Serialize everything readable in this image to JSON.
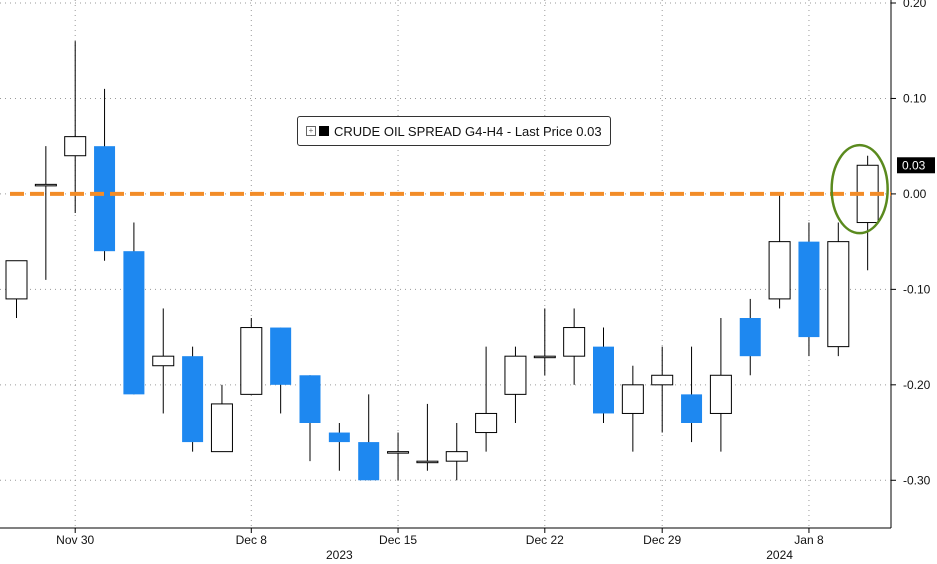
{
  "chart_data": {
    "type": "candlestick",
    "legend": {
      "label": "CRUDE OIL SPREAD G4-H4 - Last Price 0.03",
      "placement": "top-center"
    },
    "last_price_tag": "0.03",
    "last_value": 0.03,
    "reference_line": {
      "value": 0.0,
      "color": "#f28c28",
      "style": "dashed"
    },
    "highlight": {
      "label": "latest candle circled",
      "color": "#5a8a1e"
    },
    "colors": {
      "up": "#ffffff",
      "down": "#1e88f0",
      "outline": "#000000"
    },
    "ylim": [
      -0.35,
      0.2
    ],
    "grid": true,
    "yticks": [
      {
        "value": 0.2,
        "label": "0.20"
      },
      {
        "value": 0.1,
        "label": "0.10"
      },
      {
        "value": 0.0,
        "label": "0.00"
      },
      {
        "value": -0.1,
        "label": "-0.10"
      },
      {
        "value": -0.2,
        "label": "-0.20"
      },
      {
        "value": -0.3,
        "label": "-0.30"
      }
    ],
    "xticks": [
      {
        "index": 2,
        "label": "Nov 30"
      },
      {
        "index": 8,
        "label": "Dec 8"
      },
      {
        "index": 13,
        "label": "Dec 15"
      },
      {
        "index": 18,
        "label": "Dec 22"
      },
      {
        "index": 22,
        "label": "Dec 29"
      },
      {
        "index": 27,
        "label": "Jan 8"
      }
    ],
    "year_labels": [
      {
        "index": 11,
        "label": "2023"
      },
      {
        "index": 26,
        "label": "2024"
      }
    ],
    "candles": [
      {
        "open": -0.11,
        "high": -0.07,
        "low": -0.13,
        "close": -0.07
      },
      {
        "open": 0.01,
        "high": 0.05,
        "low": -0.09,
        "close": 0.01
      },
      {
        "open": 0.04,
        "high": 0.16,
        "low": -0.02,
        "close": 0.06
      },
      {
        "open": 0.05,
        "high": 0.11,
        "low": -0.07,
        "close": -0.06
      },
      {
        "open": -0.06,
        "high": -0.03,
        "low": -0.21,
        "close": -0.21
      },
      {
        "open": -0.18,
        "high": -0.12,
        "low": -0.23,
        "close": -0.17
      },
      {
        "open": -0.17,
        "high": -0.16,
        "low": -0.27,
        "close": -0.26
      },
      {
        "open": -0.27,
        "high": -0.2,
        "low": -0.27,
        "close": -0.22
      },
      {
        "open": -0.21,
        "high": -0.13,
        "low": -0.21,
        "close": -0.14
      },
      {
        "open": -0.14,
        "high": -0.14,
        "low": -0.23,
        "close": -0.2
      },
      {
        "open": -0.19,
        "high": -0.19,
        "low": -0.28,
        "close": -0.24
      },
      {
        "open": -0.25,
        "high": -0.24,
        "low": -0.29,
        "close": -0.26
      },
      {
        "open": -0.26,
        "high": -0.21,
        "low": -0.3,
        "close": -0.3
      },
      {
        "open": -0.27,
        "high": -0.25,
        "low": -0.3,
        "close": -0.27
      },
      {
        "open": -0.28,
        "high": -0.22,
        "low": -0.29,
        "close": -0.28
      },
      {
        "open": -0.28,
        "high": -0.24,
        "low": -0.3,
        "close": -0.27
      },
      {
        "open": -0.25,
        "high": -0.16,
        "low": -0.27,
        "close": -0.23
      },
      {
        "open": -0.21,
        "high": -0.16,
        "low": -0.24,
        "close": -0.17
      },
      {
        "open": -0.17,
        "high": -0.12,
        "low": -0.19,
        "close": -0.17
      },
      {
        "open": -0.17,
        "high": -0.12,
        "low": -0.2,
        "close": -0.14
      },
      {
        "open": -0.16,
        "high": -0.14,
        "low": -0.24,
        "close": -0.23
      },
      {
        "open": -0.23,
        "high": -0.18,
        "low": -0.27,
        "close": -0.2
      },
      {
        "open": -0.2,
        "high": -0.16,
        "low": -0.25,
        "close": -0.19
      },
      {
        "open": -0.21,
        "high": -0.16,
        "low": -0.26,
        "close": -0.24
      },
      {
        "open": -0.23,
        "high": -0.13,
        "low": -0.27,
        "close": -0.19
      },
      {
        "open": -0.13,
        "high": -0.11,
        "low": -0.19,
        "close": -0.17
      },
      {
        "open": -0.11,
        "high": 0.0,
        "low": -0.12,
        "close": -0.05
      },
      {
        "open": -0.05,
        "high": -0.03,
        "low": -0.17,
        "close": -0.15
      },
      {
        "open": -0.16,
        "high": -0.03,
        "low": -0.17,
        "close": -0.05
      },
      {
        "open": -0.03,
        "high": 0.04,
        "low": -0.08,
        "close": 0.03
      }
    ]
  }
}
